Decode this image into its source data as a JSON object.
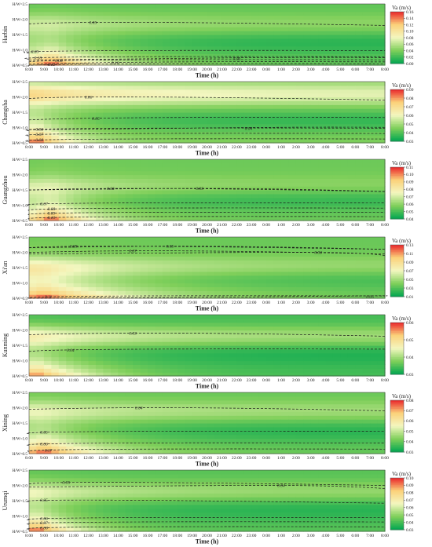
{
  "chart_data": {
    "type": "heatmap",
    "shared": {
      "x_categories": [
        "8:00",
        "9:00",
        "10:00",
        "11:00",
        "12:00",
        "13:00",
        "14:00",
        "15:00",
        "16:00",
        "17:00",
        "18:00",
        "19:00",
        "20:00",
        "21:00",
        "22:00",
        "23:00",
        "0:00",
        "1:00",
        "2:00",
        "3:00",
        "4:00",
        "5:00",
        "6:00",
        "7:00",
        "8:00"
      ],
      "y_categories": [
        "H/W=0.5",
        "H/W=1.0",
        "H/W=1.5",
        "H/W=2.0",
        "H/W=2.5"
      ],
      "xlabel": "Time (h)",
      "colorbar_label": "Va (m/s)",
      "colormap": [
        "#00a651",
        "#7fcf5a",
        "#f3f7c0",
        "#fbd17a",
        "#e9242a"
      ]
    },
    "panels": [
      {
        "city": "Harbin",
        "vmin": 0.0,
        "vmax": 0.16,
        "colorbar_ticks": [
          "0.16",
          "0.14",
          "0.12",
          "0.10",
          "0.08",
          "0.06",
          "0.04",
          "0.02",
          "0.00"
        ],
        "peak_level": 0.16,
        "peak_x": 1.5,
        "peak_decay": 4.0,
        "base_level": 0.03,
        "ridge_height": 1.85,
        "ridge_level": 0.06,
        "contour_labels": [
          {
            "text": "0.05",
            "x": 4.3,
            "y": 1.9
          },
          {
            "text": "0.05",
            "x": 0.4,
            "y": 0.95
          },
          {
            "text": "0.10",
            "x": 0.6,
            "y": 0.75
          },
          {
            "text": "0.08",
            "x": 2.0,
            "y": 0.65
          },
          {
            "text": "0.12",
            "x": 1.5,
            "y": 0.52
          },
          {
            "text": "0.10",
            "x": 5.8,
            "y": 0.58
          },
          {
            "text": "0.06",
            "x": 14.0,
            "y": 0.72
          }
        ]
      },
      {
        "city": "Changsha",
        "vmin": 0.03,
        "vmax": 0.09,
        "colorbar_ticks": [
          "0.09",
          "0.08",
          "0.07",
          "0.06",
          "0.05",
          "0.04",
          "0.03"
        ],
        "peak_level": 0.09,
        "peak_x": 0.5,
        "peak_decay": 2.5,
        "base_level": 0.045,
        "ridge_height": 2.1,
        "ridge_level": 0.07,
        "contour_labels": [
          {
            "text": "0.06",
            "x": 4.0,
            "y": 2.0
          },
          {
            "text": "0.05",
            "x": 4.5,
            "y": 1.3
          },
          {
            "text": "0.04",
            "x": 14.8,
            "y": 0.98
          },
          {
            "text": "0.06",
            "x": 0.7,
            "y": 0.95
          },
          {
            "text": "0.07",
            "x": 0.7,
            "y": 0.78
          },
          {
            "text": "0.08",
            "x": 0.7,
            "y": 0.6
          }
        ]
      },
      {
        "city": "Guangzhou",
        "vmin": 0.04,
        "vmax": 0.11,
        "colorbar_ticks": [
          "0.11",
          "0.10",
          "0.09",
          "0.08",
          "0.07",
          "0.06",
          "0.05",
          "0.04"
        ],
        "peak_level": 0.11,
        "peak_x": 1.5,
        "peak_decay": 3.0,
        "base_level": 0.055,
        "ridge_height": 1.6,
        "ridge_level": 0.068,
        "contour_labels": [
          {
            "text": "0.06",
            "x": 5.5,
            "y": 1.55
          },
          {
            "text": "0.05",
            "x": 11.5,
            "y": 1.55
          },
          {
            "text": "0.07",
            "x": 1.0,
            "y": 1.05
          },
          {
            "text": "0.08",
            "x": 1.5,
            "y": 0.88
          },
          {
            "text": "0.09",
            "x": 1.5,
            "y": 0.74
          },
          {
            "text": "0.10",
            "x": 1.5,
            "y": 0.6
          }
        ]
      },
      {
        "city": "Xi'an",
        "vmin": 0.01,
        "vmax": 0.13,
        "colorbar_ticks": [
          "0.13",
          "0.11",
          "0.09",
          "0.07",
          "0.05",
          "0.03",
          "0.01"
        ],
        "peak_level": 0.13,
        "peak_x": 1.0,
        "peak_decay": 6.0,
        "base_level": 0.035,
        "ridge_height": 1.5,
        "ridge_level": 0.07,
        "contour_labels": [
          {
            "text": "0.09",
            "x": 3.0,
            "y": 2.2
          },
          {
            "text": "0.07",
            "x": 7.0,
            "y": 2.05
          },
          {
            "text": "0.05",
            "x": 9.5,
            "y": 2.2
          },
          {
            "text": "0.03",
            "x": 19.5,
            "y": 2.0
          },
          {
            "text": "0.11",
            "x": 1.3,
            "y": 0.55
          },
          {
            "text": "0.05",
            "x": 23.0,
            "y": 0.55
          }
        ]
      },
      {
        "city": "Kunming",
        "vmin": 0.03,
        "vmax": 0.06,
        "colorbar_ticks": [
          "0.06",
          "0.05",
          "0.04",
          "0.03"
        ],
        "peak_level": 0.058,
        "peak_x": 0.5,
        "peak_decay": 4.0,
        "base_level": 0.034,
        "ridge_height": 1.8,
        "ridge_level": 0.045,
        "contour_labels": [
          {
            "text": "0.04",
            "x": 2.8,
            "y": 1.35
          },
          {
            "text": "0.03",
            "x": 7.0,
            "y": 1.9
          }
        ]
      },
      {
        "city": "Xining",
        "vmin": 0.03,
        "vmax": 0.08,
        "colorbar_ticks": [
          "0.08",
          "0.07",
          "0.06",
          "0.05",
          "0.04",
          "0.03"
        ],
        "peak_level": 0.08,
        "peak_x": 1.0,
        "peak_decay": 4.0,
        "base_level": 0.04,
        "ridge_height": 1.9,
        "ridge_level": 0.052,
        "contour_labels": [
          {
            "text": "0.04",
            "x": 7.4,
            "y": 2.0
          },
          {
            "text": "0.05",
            "x": 1.0,
            "y": 1.2
          },
          {
            "text": "0.06",
            "x": 1.0,
            "y": 0.82
          },
          {
            "text": "0.07",
            "x": 1.3,
            "y": 0.62
          }
        ]
      },
      {
        "city": "Urumqi",
        "vmin": 0.03,
        "vmax": 0.1,
        "colorbar_ticks": [
          "0.10",
          "0.09",
          "0.08",
          "0.07",
          "0.06",
          "0.05",
          "0.04",
          "0.03"
        ],
        "peak_level": 0.1,
        "peak_x": 0.5,
        "peak_decay": 3.0,
        "base_level": 0.042,
        "ridge_height": 1.8,
        "ridge_level": 0.06,
        "contour_labels": [
          {
            "text": "0.05",
            "x": 2.5,
            "y": 2.1
          },
          {
            "text": "0.05",
            "x": 1.0,
            "y": 1.52
          },
          {
            "text": "0.04",
            "x": 17.0,
            "y": 2.0
          },
          {
            "text": "0.06",
            "x": 1.0,
            "y": 0.92
          },
          {
            "text": "0.07",
            "x": 1.0,
            "y": 0.78
          },
          {
            "text": "0.08",
            "x": 1.0,
            "y": 0.62
          }
        ]
      }
    ]
  }
}
